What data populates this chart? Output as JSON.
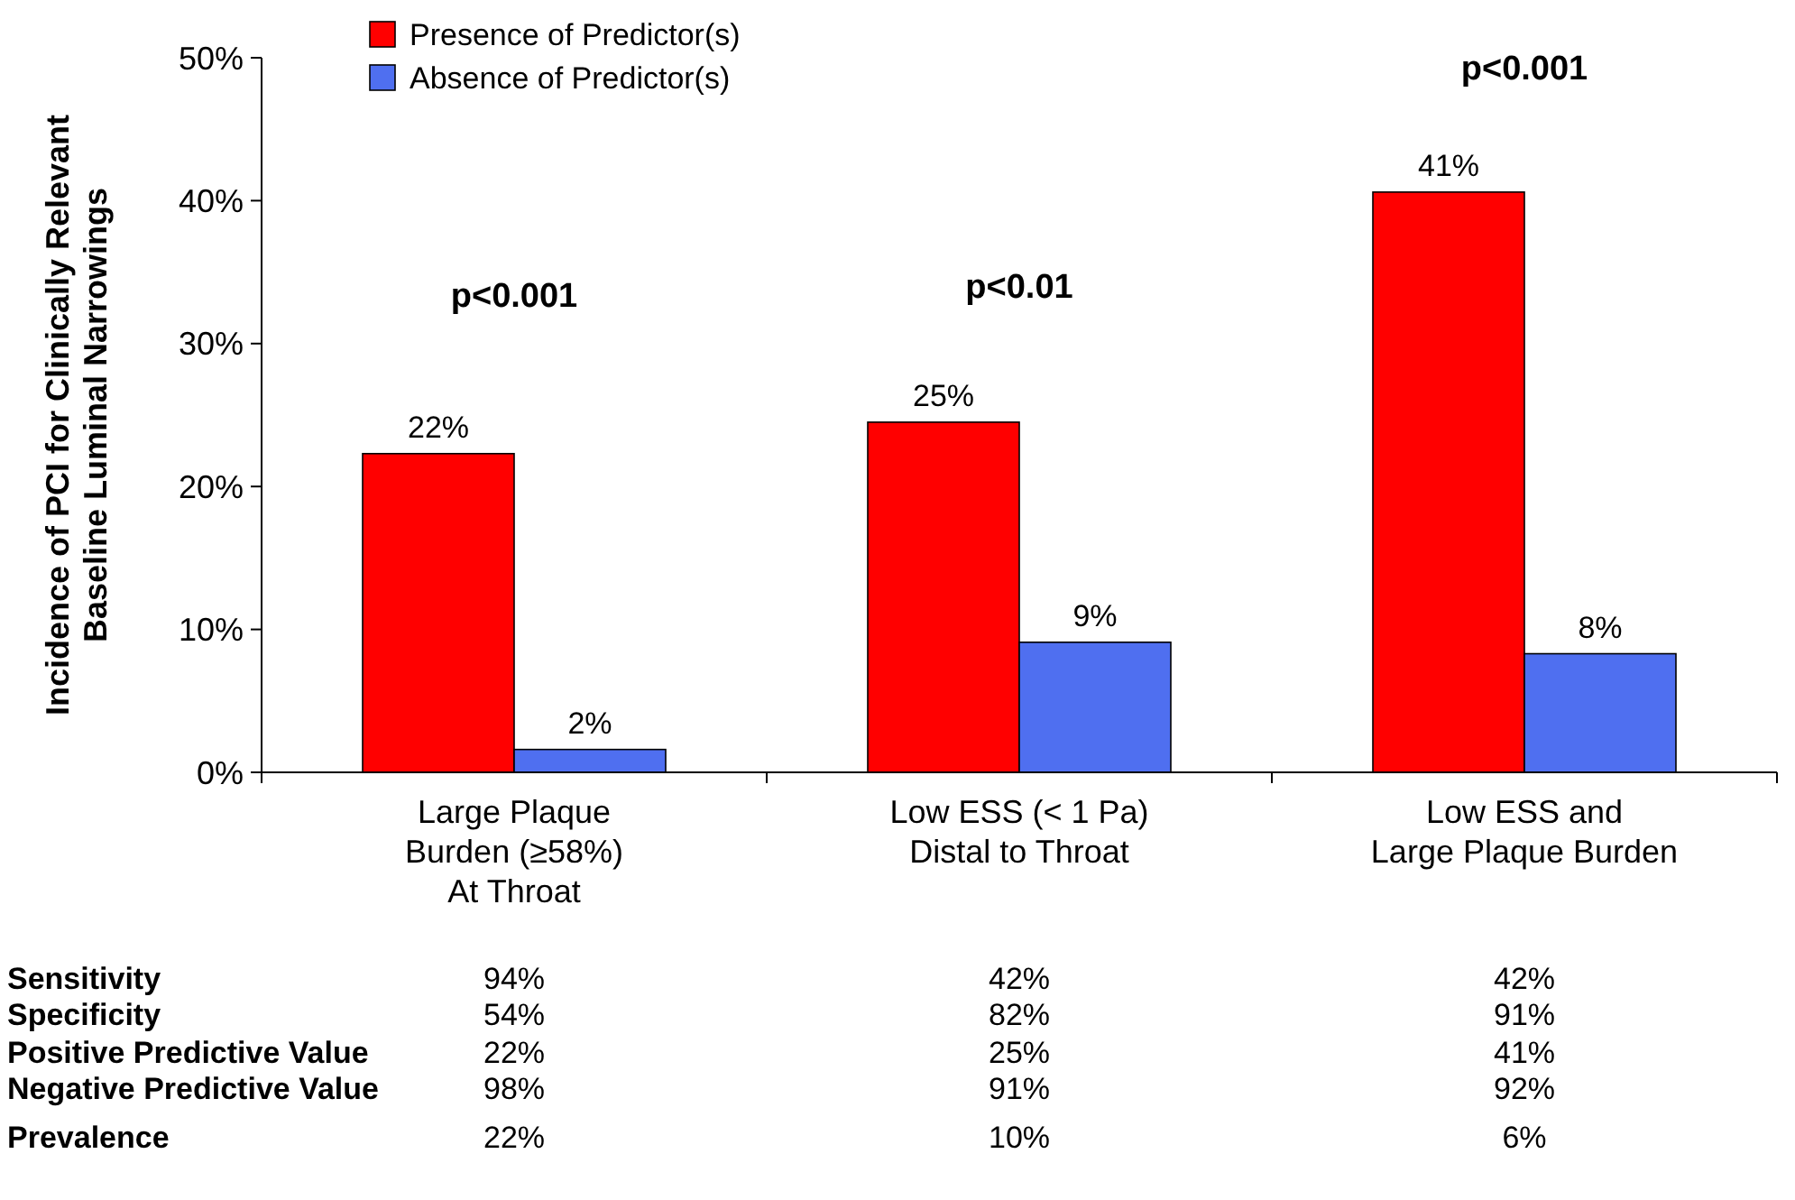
{
  "chart_data": {
    "type": "bar",
    "ylabel": "Incidence of PCI for Clinically Relevant\nBaseline Luminal Narrowings",
    "categories": [
      "Large Plaque\nBurden (≥58%)\nAt Throat",
      "Low ESS (< 1 Pa)\nDistal to Throat",
      "Low ESS and\nLarge Plaque Burden"
    ],
    "series": [
      {
        "name": "Presence of Predictor(s)",
        "color": "#ff0000",
        "values": [
          22.3,
          24.5,
          40.6
        ],
        "value_labels": [
          "22%",
          "25%",
          "41%"
        ]
      },
      {
        "name": "Absence of Predictor(s)",
        "color": "#4f6ff0",
        "values": [
          1.6,
          9.1,
          8.3
        ],
        "value_labels": [
          "2%",
          "9%",
          "8%"
        ]
      }
    ],
    "ylim": [
      0,
      50
    ],
    "yticks": [
      {
        "value": 0,
        "label": "0%"
      },
      {
        "value": 10,
        "label": "10%"
      },
      {
        "value": 20,
        "label": "20%"
      },
      {
        "value": 30,
        "label": "30%"
      },
      {
        "value": 40,
        "label": "40%"
      },
      {
        "value": 50,
        "label": "50%"
      }
    ],
    "legend": "top left",
    "grid": false,
    "annotations": [
      "p<0.001",
      "p<0.01",
      "p<0.001",
      "Sensitivity",
      "94%",
      "42%",
      "42%",
      "Specificity",
      "54%",
      "82%",
      "91%",
      "Positive Predictive Value",
      "22%",
      "25%",
      "41%",
      "Negative Predictive Value",
      "98%",
      "91%",
      "92%",
      "Prevalence",
      "22%",
      "10%",
      "6%"
    ]
  }
}
